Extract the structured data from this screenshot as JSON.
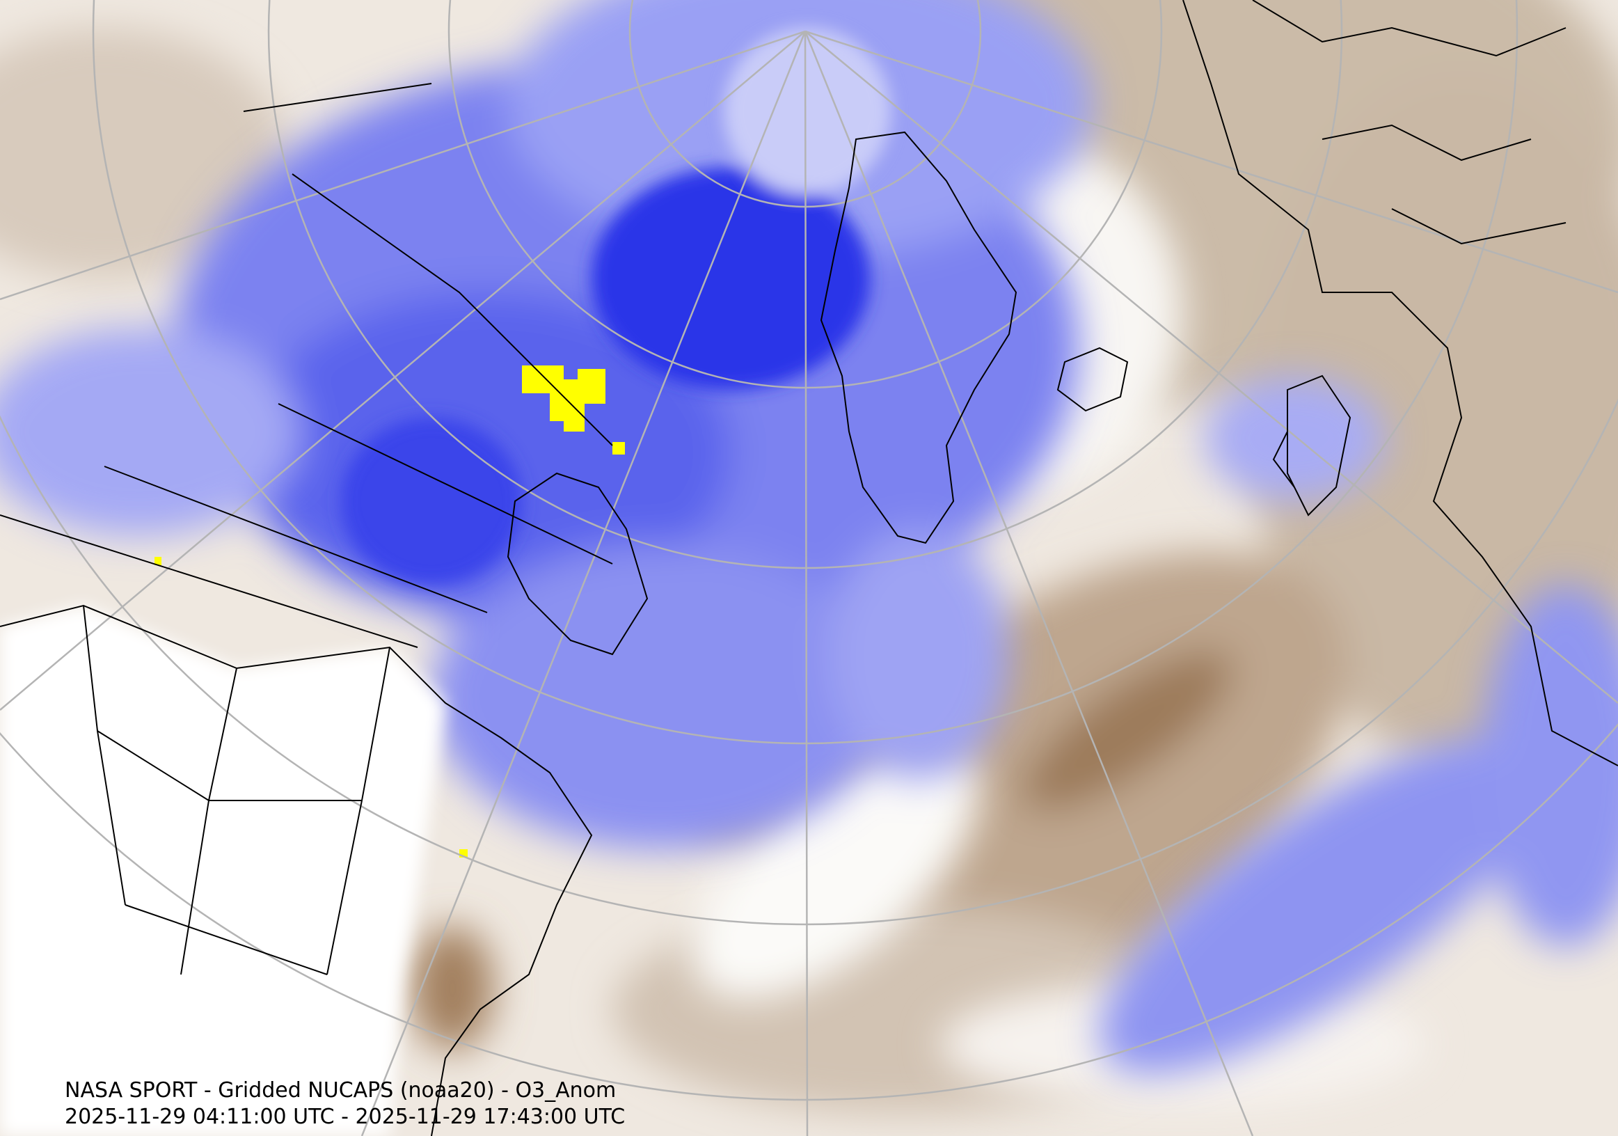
{
  "map": {
    "title": "NASA SPORT - Gridded NUCAPS (noaa20) - O3_Anom",
    "time_range": "2025-11-29 04:11:00 UTC - 2025-11-29 17:43:00 UTC"
  }
}
